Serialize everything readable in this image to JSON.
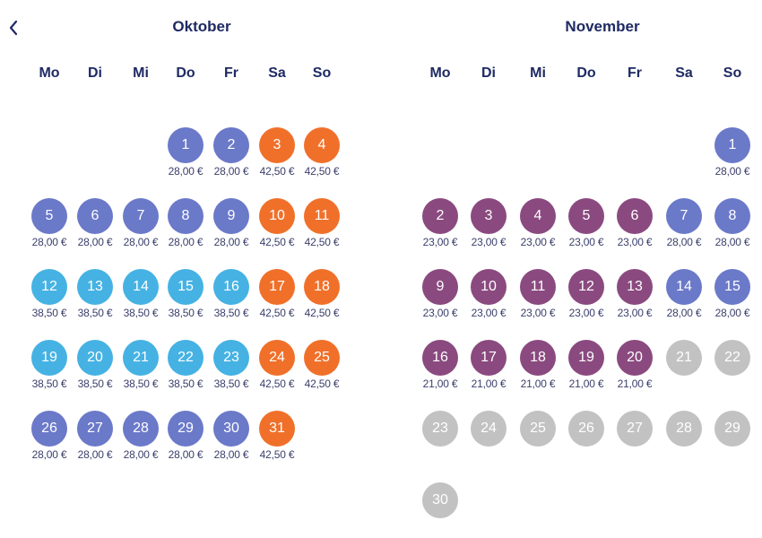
{
  "colors": {
    "weekday_price": "#6b79c9",
    "weekend_price": "#f0702a",
    "mid_week_price": "#45b2e3",
    "low_price": "#8a4a7f",
    "unavailable": "#c2c2c2",
    "heading": "#1f2a63"
  },
  "nav": {
    "prev_icon": "chevron-left-icon"
  },
  "months": [
    {
      "title": "Oktober",
      "weekdays": [
        "Mo",
        "Di",
        "Mi",
        "Do",
        "Fr",
        "Sa",
        "So"
      ],
      "start_col": 3,
      "days": [
        {
          "day": "1",
          "price": "28,00 €",
          "color": "#6b79c9"
        },
        {
          "day": "2",
          "price": "28,00 €",
          "color": "#6b79c9"
        },
        {
          "day": "3",
          "price": "42,50 €",
          "color": "#f0702a"
        },
        {
          "day": "4",
          "price": "42,50 €",
          "color": "#f0702a"
        },
        {
          "day": "5",
          "price": "28,00 €",
          "color": "#6b79c9"
        },
        {
          "day": "6",
          "price": "28,00 €",
          "color": "#6b79c9"
        },
        {
          "day": "7",
          "price": "28,00 €",
          "color": "#6b79c9"
        },
        {
          "day": "8",
          "price": "28,00 €",
          "color": "#6b79c9"
        },
        {
          "day": "9",
          "price": "28,00 €",
          "color": "#6b79c9"
        },
        {
          "day": "10",
          "price": "42,50 €",
          "color": "#f0702a"
        },
        {
          "day": "11",
          "price": "42,50 €",
          "color": "#f0702a"
        },
        {
          "day": "12",
          "price": "38,50 €",
          "color": "#45b2e3"
        },
        {
          "day": "13",
          "price": "38,50 €",
          "color": "#45b2e3"
        },
        {
          "day": "14",
          "price": "38,50 €",
          "color": "#45b2e3"
        },
        {
          "day": "15",
          "price": "38,50 €",
          "color": "#45b2e3"
        },
        {
          "day": "16",
          "price": "38,50 €",
          "color": "#45b2e3"
        },
        {
          "day": "17",
          "price": "42,50 €",
          "color": "#f0702a"
        },
        {
          "day": "18",
          "price": "42,50 €",
          "color": "#f0702a"
        },
        {
          "day": "19",
          "price": "38,50 €",
          "color": "#45b2e3"
        },
        {
          "day": "20",
          "price": "38,50 €",
          "color": "#45b2e3"
        },
        {
          "day": "21",
          "price": "38,50 €",
          "color": "#45b2e3"
        },
        {
          "day": "22",
          "price": "38,50 €",
          "color": "#45b2e3"
        },
        {
          "day": "23",
          "price": "38,50 €",
          "color": "#45b2e3"
        },
        {
          "day": "24",
          "price": "42,50 €",
          "color": "#f0702a"
        },
        {
          "day": "25",
          "price": "42,50 €",
          "color": "#f0702a"
        },
        {
          "day": "26",
          "price": "28,00 €",
          "color": "#6b79c9"
        },
        {
          "day": "27",
          "price": "28,00 €",
          "color": "#6b79c9"
        },
        {
          "day": "28",
          "price": "28,00 €",
          "color": "#6b79c9"
        },
        {
          "day": "29",
          "price": "28,00 €",
          "color": "#6b79c9"
        },
        {
          "day": "30",
          "price": "28,00 €",
          "color": "#6b79c9"
        },
        {
          "day": "31",
          "price": "42,50 €",
          "color": "#f0702a"
        }
      ]
    },
    {
      "title": "November",
      "weekdays": [
        "Mo",
        "Di",
        "Mi",
        "Do",
        "Fr",
        "Sa",
        "So"
      ],
      "start_col": 6,
      "days": [
        {
          "day": "1",
          "price": "28,00 €",
          "color": "#6b79c9"
        },
        {
          "day": "2",
          "price": "23,00 €",
          "color": "#8a4a7f"
        },
        {
          "day": "3",
          "price": "23,00 €",
          "color": "#8a4a7f"
        },
        {
          "day": "4",
          "price": "23,00 €",
          "color": "#8a4a7f"
        },
        {
          "day": "5",
          "price": "23,00 €",
          "color": "#8a4a7f"
        },
        {
          "day": "6",
          "price": "23,00 €",
          "color": "#8a4a7f"
        },
        {
          "day": "7",
          "price": "28,00 €",
          "color": "#6b79c9"
        },
        {
          "day": "8",
          "price": "28,00 €",
          "color": "#6b79c9"
        },
        {
          "day": "9",
          "price": "23,00 €",
          "color": "#8a4a7f"
        },
        {
          "day": "10",
          "price": "23,00 €",
          "color": "#8a4a7f"
        },
        {
          "day": "11",
          "price": "23,00 €",
          "color": "#8a4a7f"
        },
        {
          "day": "12",
          "price": "23,00 €",
          "color": "#8a4a7f"
        },
        {
          "day": "13",
          "price": "23,00 €",
          "color": "#8a4a7f"
        },
        {
          "day": "14",
          "price": "28,00 €",
          "color": "#6b79c9"
        },
        {
          "day": "15",
          "price": "28,00 €",
          "color": "#6b79c9"
        },
        {
          "day": "16",
          "price": "21,00 €",
          "color": "#8a4a7f"
        },
        {
          "day": "17",
          "price": "21,00 €",
          "color": "#8a4a7f"
        },
        {
          "day": "18",
          "price": "21,00 €",
          "color": "#8a4a7f"
        },
        {
          "day": "19",
          "price": "21,00 €",
          "color": "#8a4a7f"
        },
        {
          "day": "20",
          "price": "21,00 €",
          "color": "#8a4a7f"
        },
        {
          "day": "21",
          "price": "",
          "color": "#c2c2c2"
        },
        {
          "day": "22",
          "price": "",
          "color": "#c2c2c2"
        },
        {
          "day": "23",
          "price": "",
          "color": "#c2c2c2"
        },
        {
          "day": "24",
          "price": "",
          "color": "#c2c2c2"
        },
        {
          "day": "25",
          "price": "",
          "color": "#c2c2c2"
        },
        {
          "day": "26",
          "price": "",
          "color": "#c2c2c2"
        },
        {
          "day": "27",
          "price": "",
          "color": "#c2c2c2"
        },
        {
          "day": "28",
          "price": "",
          "color": "#c2c2c2"
        },
        {
          "day": "29",
          "price": "",
          "color": "#c2c2c2"
        },
        {
          "day": "30",
          "price": "",
          "color": "#c2c2c2"
        }
      ]
    }
  ]
}
